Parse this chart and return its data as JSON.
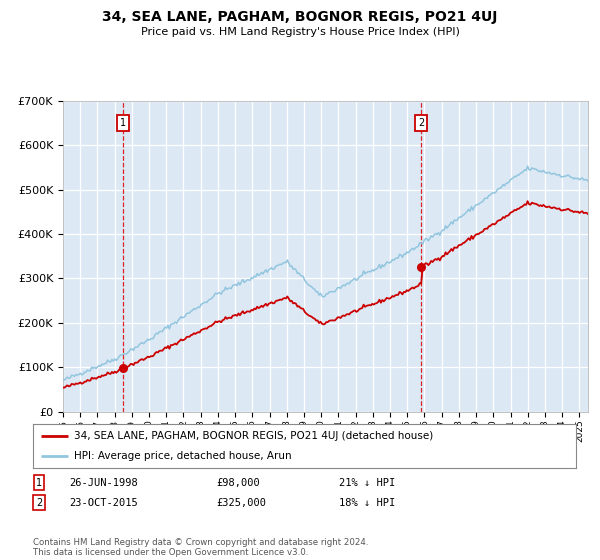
{
  "title": "34, SEA LANE, PAGHAM, BOGNOR REGIS, PO21 4UJ",
  "subtitle": "Price paid vs. HM Land Registry's House Price Index (HPI)",
  "ylim": [
    0,
    700000
  ],
  "yticks": [
    0,
    100000,
    200000,
    300000,
    400000,
    500000,
    600000,
    700000
  ],
  "ytick_labels": [
    "£0",
    "£100K",
    "£200K",
    "£300K",
    "£400K",
    "£500K",
    "£600K",
    "£700K"
  ],
  "plot_bg_color": "#dce9f5",
  "grid_color": "#ffffff",
  "hpi_color": "#92c5de",
  "price_color": "#cc0000",
  "sale1_date": 1998.49,
  "sale1_price": 98000,
  "sale2_date": 2015.81,
  "sale2_price": 325000,
  "legend_label_price": "34, SEA LANE, PAGHAM, BOGNOR REGIS, PO21 4UJ (detached house)",
  "legend_label_hpi": "HPI: Average price, detached house, Arun",
  "note1_text": "26-JUN-1998",
  "note1_price": "£98,000",
  "note1_pct": "21% ↓ HPI",
  "note2_text": "23-OCT-2015",
  "note2_price": "£325,000",
  "note2_pct": "18% ↓ HPI",
  "footer": "Contains HM Land Registry data © Crown copyright and database right 2024.\nThis data is licensed under the Open Government Licence v3.0.",
  "xmin": 1995.0,
  "xmax": 2025.5
}
